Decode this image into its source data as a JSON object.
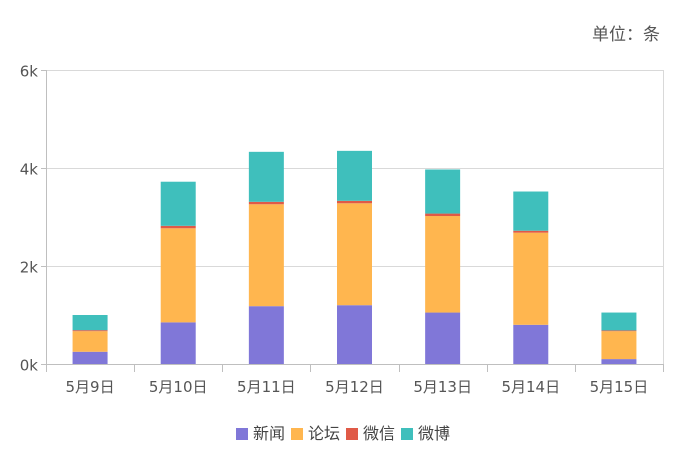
{
  "unit_label": "单位：条",
  "chart_data": {
    "type": "bar",
    "stacked": true,
    "categories": [
      "5月9日",
      "5月10日",
      "5月11日",
      "5月12日",
      "5月13日",
      "5月14日",
      "5月15日"
    ],
    "series": [
      {
        "name": "新闻",
        "color": "#8077d8",
        "values": [
          250,
          850,
          1180,
          1200,
          1050,
          800,
          100
        ]
      },
      {
        "name": "论坛",
        "color": "#ffb64f",
        "values": [
          420,
          1920,
          2080,
          2080,
          1970,
          1880,
          570
        ]
      },
      {
        "name": "微信",
        "color": "#e05a47",
        "values": [
          20,
          50,
          50,
          50,
          50,
          40,
          15
        ]
      },
      {
        "name": "微博",
        "color": "#3fbfbc",
        "values": [
          310,
          900,
          1020,
          1020,
          900,
          800,
          365
        ]
      }
    ],
    "ylim": [
      0,
      6000
    ],
    "yticks": [
      0,
      2000,
      4000,
      6000
    ],
    "ytick_labels": [
      "0k",
      "2k",
      "4k",
      "6k"
    ],
    "grid": true,
    "legend_position": "bottom"
  }
}
